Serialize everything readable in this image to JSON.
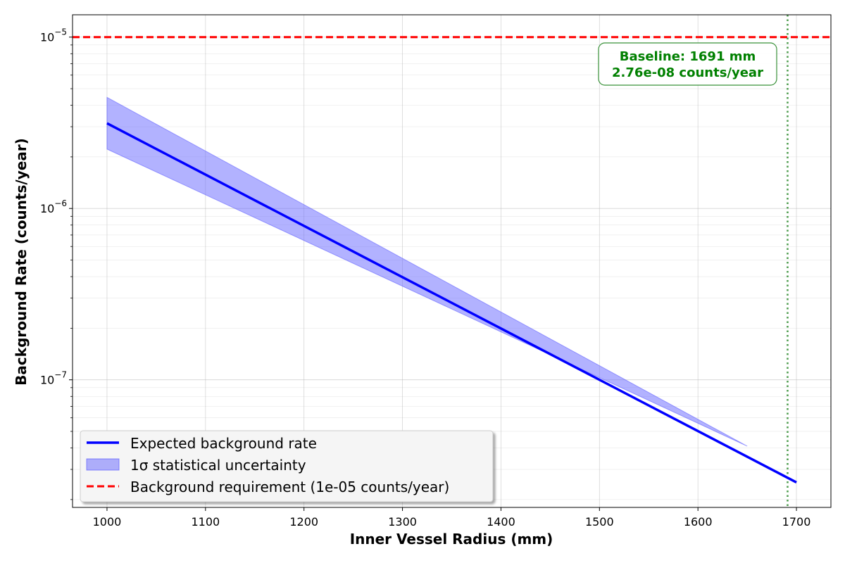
{
  "chart_data": {
    "type": "line",
    "title": "",
    "xlabel": "Inner Vessel Radius (mm)",
    "ylabel": "Background Rate (counts/year)",
    "yscale": "log",
    "xlim": [
      965,
      1735
    ],
    "ylim": [
      1.8e-08,
      1.35e-05
    ],
    "grid": true,
    "x_ticks": [
      1000,
      1100,
      1200,
      1300,
      1400,
      1500,
      1600,
      1700
    ],
    "y_ticks": [
      {
        "value": 1e-07,
        "base": "10",
        "exp": "−7"
      },
      {
        "value": 1e-06,
        "base": "10",
        "exp": "−6"
      },
      {
        "value": 1e-05,
        "base": "10",
        "exp": "−5"
      }
    ],
    "series": [
      {
        "name": "Expected background rate",
        "color": "#0000ff",
        "x": [
          1000,
          1700
        ],
        "y": [
          3.14e-06,
          2.52e-08
        ]
      }
    ],
    "band": {
      "name": "1σ statistical uncertainty",
      "color": "#6666ff",
      "x": [
        1000,
        1650
      ],
      "lower": [
        2.22e-06,
        4.1e-08
      ],
      "upper": [
        4.45e-06,
        4.1e-08
      ]
    },
    "requirement": {
      "name": "Background requirement (1e-05 counts/year)",
      "value": 1e-05,
      "color": "#ff0000"
    },
    "baseline": {
      "x": 1691,
      "color": "#2e8b2e",
      "label_line1": "Baseline: 1691 mm",
      "label_line2": "2.76e-08 counts/year"
    },
    "legend_position": "lower-left"
  }
}
